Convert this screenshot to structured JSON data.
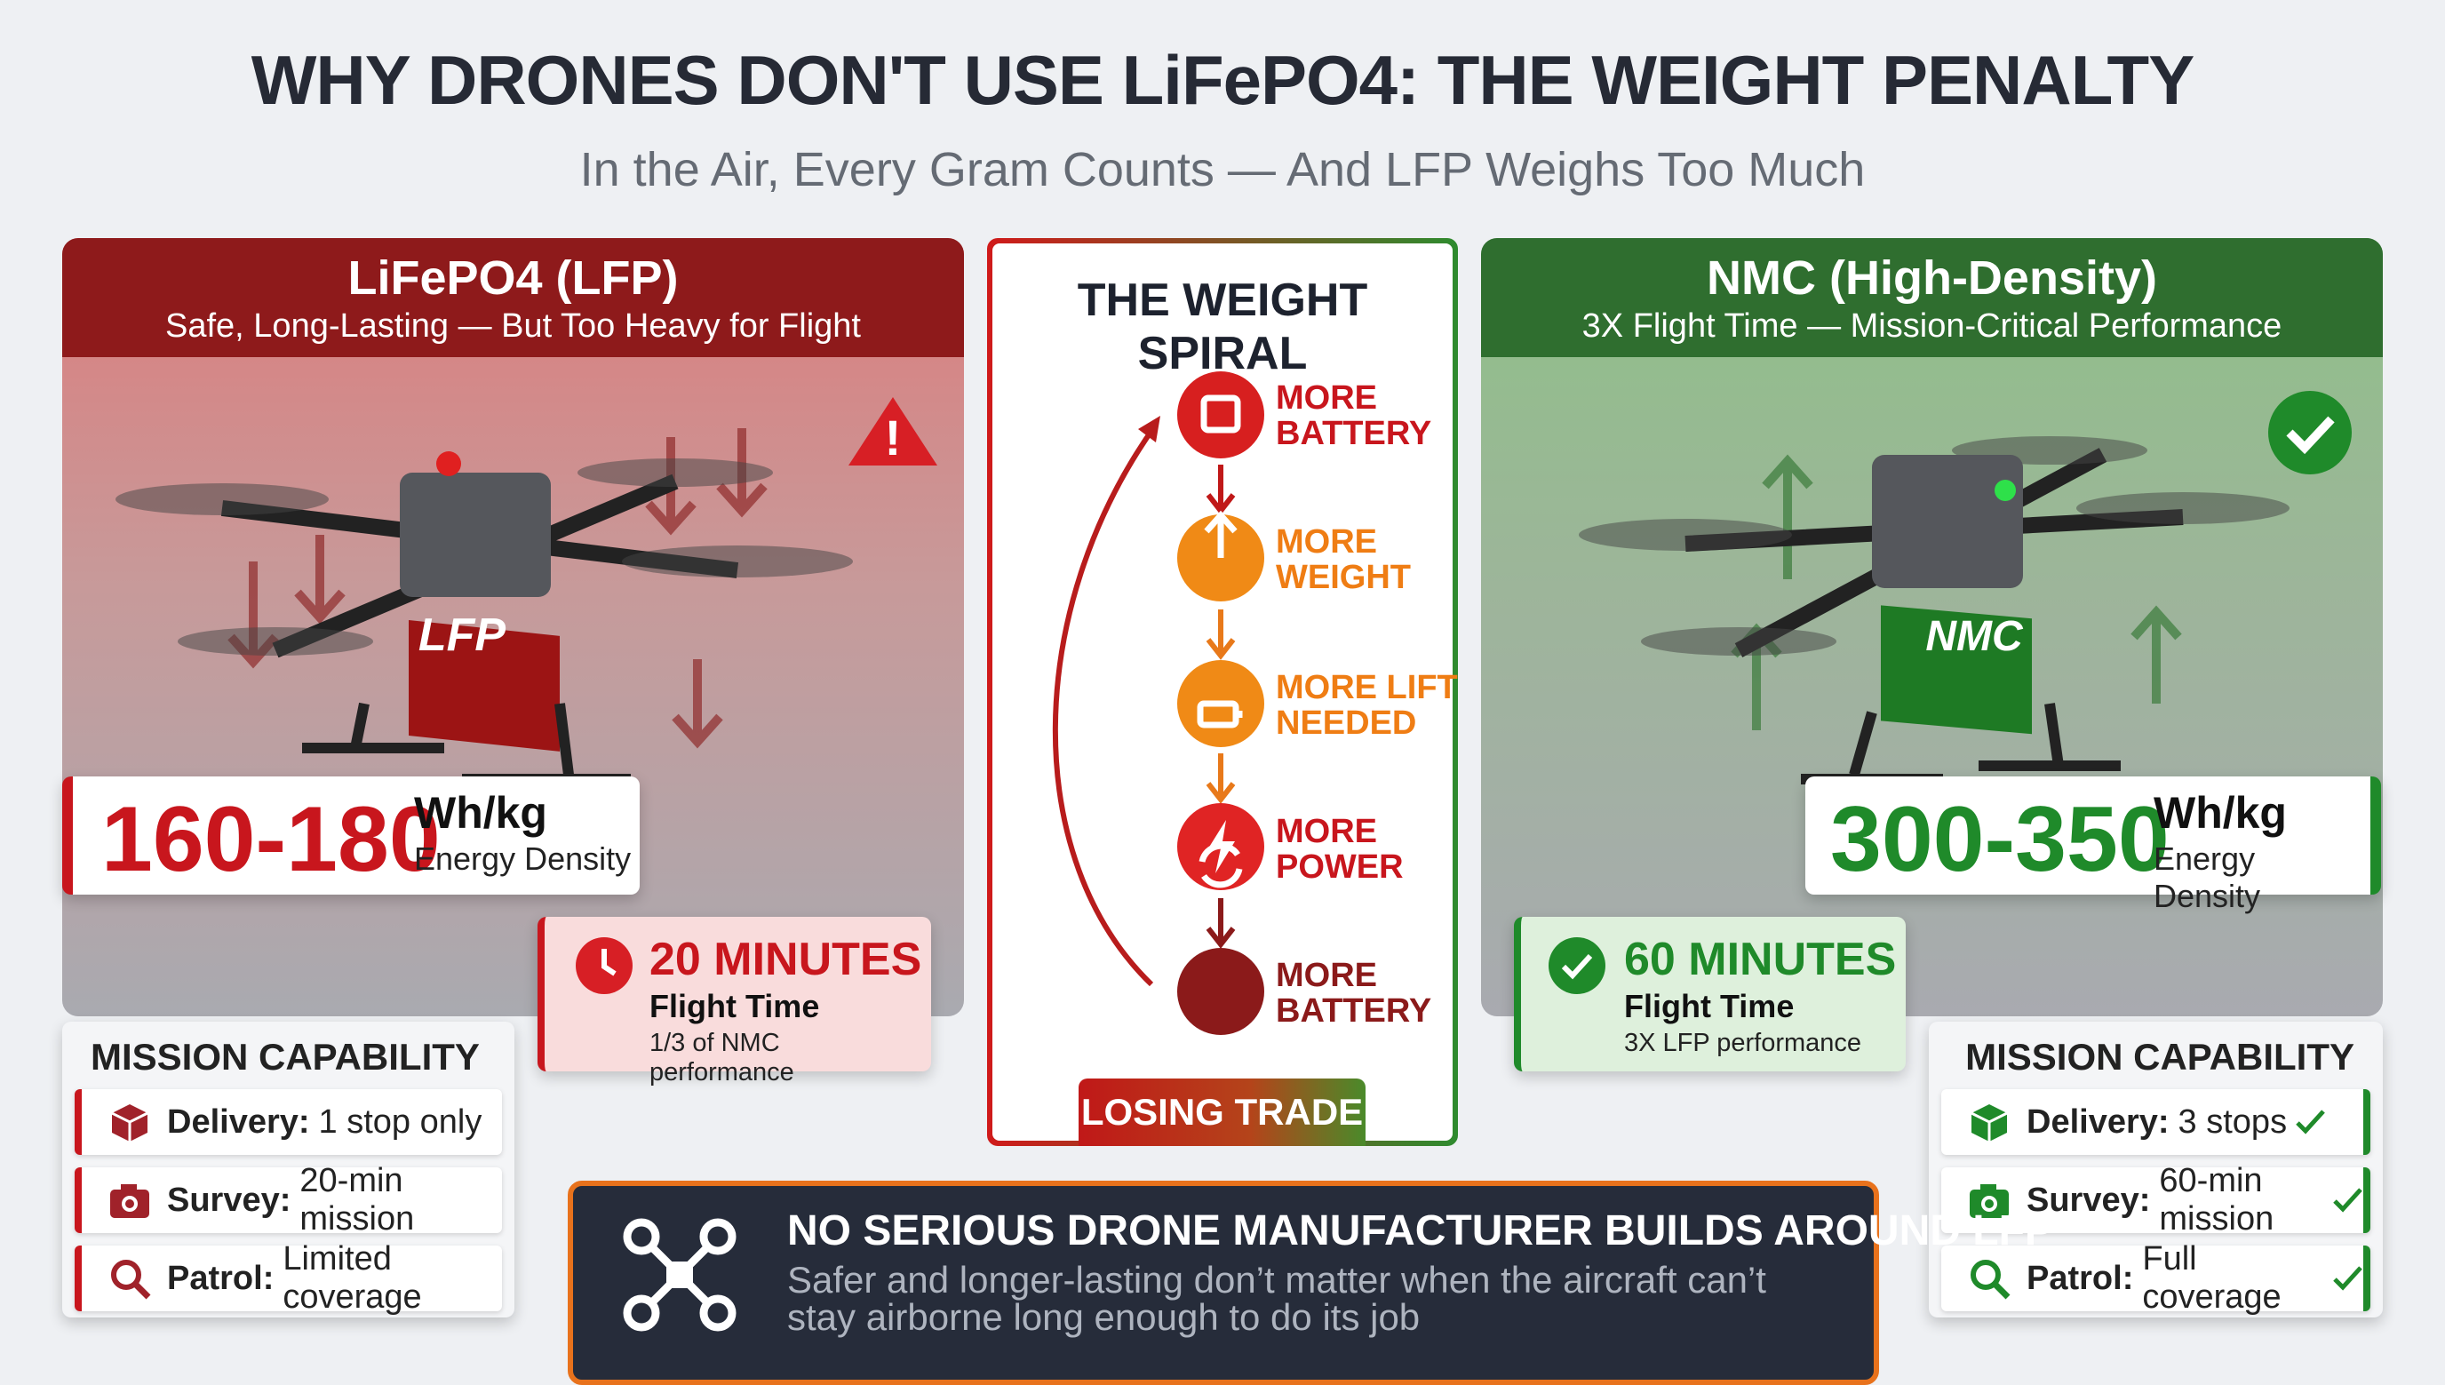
{
  "header": {
    "title": "WHY DRONES DON'T USE LiFePO4: THE WEIGHT PENALTY",
    "subtitle": "In the Air, Every Gram Counts — And LFP Weighs Too Much"
  },
  "left_panel": {
    "title": "LiFePO4 (LFP)",
    "subtitle": "Safe, Long-Lasting — But Too Heavy for Flight",
    "battery_label": "LFP",
    "density_value": "160-180",
    "density_unit": "Wh/kg",
    "density_label": "Energy Density",
    "flight_time": "20 MINUTES",
    "flight_label": "Flight Time",
    "flight_note": "1/3 of NMC performance",
    "mission_title": "MISSION CAPABILITY",
    "missions": [
      {
        "label": "Delivery:",
        "text": "1 stop only"
      },
      {
        "label": "Survey:",
        "text": "20-min mission"
      },
      {
        "label": "Patrol:",
        "text": "Limited coverage"
      }
    ]
  },
  "spiral": {
    "title": "THE WEIGHT SPIRAL",
    "steps": [
      "MORE BATTERY",
      "MORE WEIGHT",
      "MORE LIFT NEEDED",
      "MORE POWER",
      "MORE BATTERY"
    ],
    "footer": "LOSING TRADE"
  },
  "right_panel": {
    "title": "NMC (High-Density)",
    "subtitle": "3X Flight Time — Mission-Critical Performance",
    "battery_label": "NMC",
    "density_value": "300-350",
    "density_unit": "Wh/kg",
    "density_label": "Energy Density",
    "flight_time": "60 MINUTES",
    "flight_label": "Flight Time",
    "flight_note": "3X LFP performance",
    "mission_title": "MISSION CAPABILITY",
    "missions": [
      {
        "label": "Delivery:",
        "text": "3 stops"
      },
      {
        "label": "Survey:",
        "text": "60-min mission"
      },
      {
        "label": "Patrol:",
        "text": "Full coverage"
      }
    ]
  },
  "banner": {
    "title": "NO SERIOUS DRONE MANUFACTURER BUILDS AROUND LFP",
    "text": "Safer and longer-lasting don’t matter when the aircraft can’t stay airborne long enough to do its job"
  }
}
